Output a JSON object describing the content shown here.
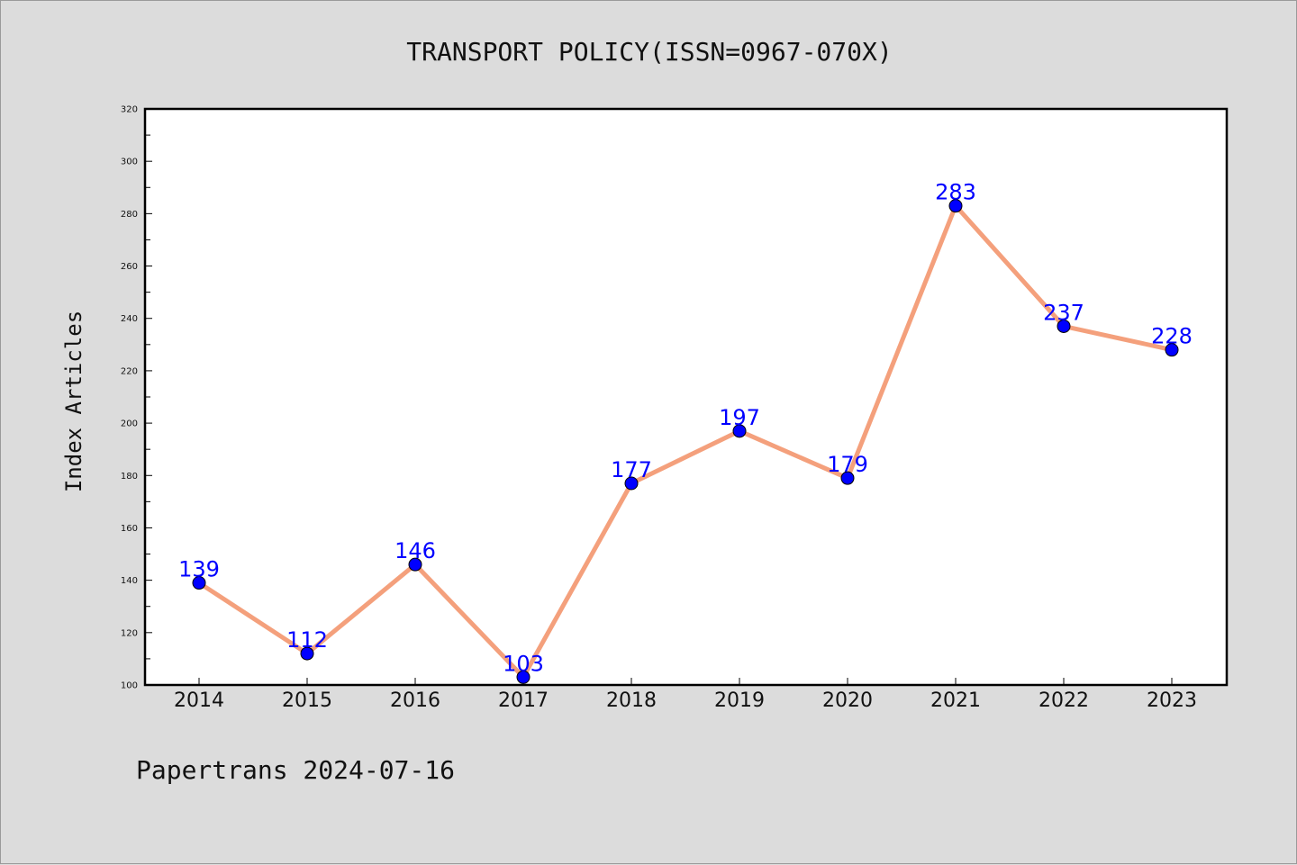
{
  "colors": {
    "background": "#dcdcdc",
    "plot_background": "#ffffff",
    "line": "#f4a07c",
    "marker": "#0000ff",
    "data_label": "#0000ff"
  },
  "footer": {
    "text": "Papertrans 2024-07-16"
  },
  "chart_data": {
    "type": "line",
    "title": "TRANSPORT POLICY(ISSN=0967-070X)",
    "xlabel": "",
    "ylabel": "Index Articles",
    "categories": [
      "2014",
      "2015",
      "2016",
      "2017",
      "2018",
      "2019",
      "2020",
      "2021",
      "2022",
      "2023"
    ],
    "values": [
      139,
      112,
      146,
      103,
      177,
      197,
      179,
      283,
      237,
      228
    ],
    "ylim": [
      100,
      320
    ],
    "yticks": [
      100,
      120,
      140,
      160,
      180,
      200,
      220,
      240,
      260,
      280,
      300,
      320
    ],
    "grid": false,
    "legend": "none",
    "data_labels": true,
    "marker": "circle"
  }
}
